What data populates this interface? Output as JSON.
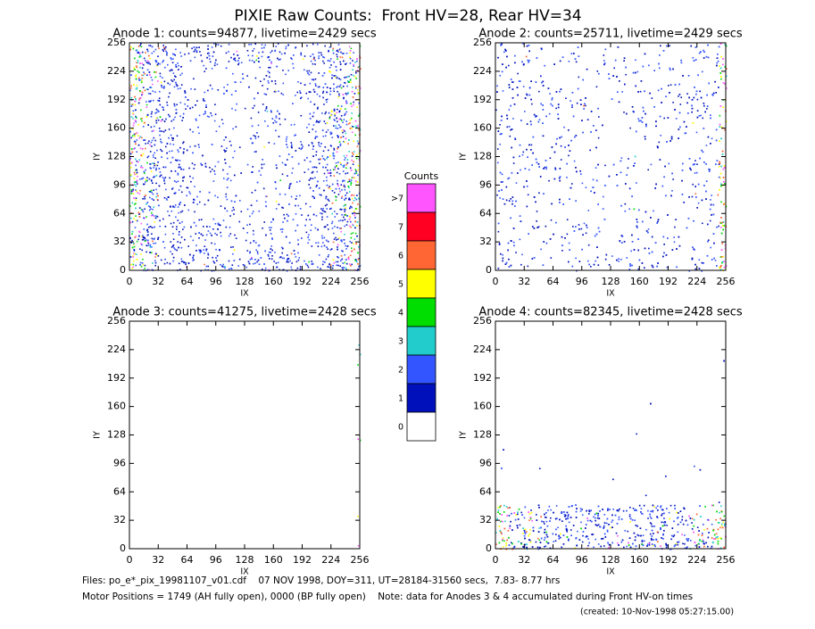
{
  "chart_data": [
    {
      "type": "heatmap",
      "title": "Anode 1: counts=94877, livetime=2429 secs",
      "xlabel": "IX",
      "ylabel": "IY",
      "xlim": [
        0,
        256
      ],
      "ylim": [
        0,
        256
      ],
      "xticks": [
        0,
        32,
        64,
        96,
        128,
        160,
        192,
        224,
        256
      ],
      "yticks": [
        0,
        32,
        64,
        96,
        128,
        160,
        192,
        224,
        256
      ]
    },
    {
      "type": "heatmap",
      "title": "Anode 2: counts=25711, livetime=2429 secs",
      "xlabel": "IX",
      "ylabel": "IY",
      "xlim": [
        0,
        256
      ],
      "ylim": [
        0,
        256
      ],
      "xticks": [
        0,
        32,
        64,
        96,
        128,
        160,
        192,
        224,
        256
      ],
      "yticks": [
        0,
        32,
        64,
        96,
        128,
        160,
        192,
        224,
        256
      ]
    },
    {
      "type": "heatmap",
      "title": "Anode 3: counts=41275, livetime=2428 secs",
      "xlabel": "IX",
      "ylabel": "IY",
      "xlim": [
        0,
        256
      ],
      "ylim": [
        0,
        256
      ],
      "xticks": [
        0,
        32,
        64,
        96,
        128,
        160,
        192,
        224,
        256
      ],
      "yticks": [
        0,
        32,
        64,
        96,
        128,
        160,
        192,
        224,
        256
      ]
    },
    {
      "type": "heatmap",
      "title": "Anode 4: counts=82345, livetime=2428 secs",
      "xlabel": "IX",
      "ylabel": "IY",
      "xlim": [
        0,
        256
      ],
      "ylim": [
        0,
        256
      ],
      "xticks": [
        0,
        32,
        64,
        96,
        128,
        160,
        192,
        224,
        256
      ],
      "yticks": [
        0,
        32,
        64,
        96,
        128,
        160,
        192,
        224,
        256
      ]
    }
  ],
  "header": {
    "title": "PIXIE Raw Counts:  Front HV=28, Rear HV=34"
  },
  "colorbar": {
    "title": "Counts",
    "labels": [
      ">7",
      "7",
      "6",
      "5",
      "4",
      "3",
      "2",
      "1",
      "0"
    ],
    "colors": [
      "#ff55ff",
      "#ff0022",
      "#ff6633",
      "#ffff00",
      "#00dd00",
      "#22cccc",
      "#3355ff",
      "#0011bb",
      "#ffffff"
    ]
  },
  "footer": {
    "files": "Files: po_e*_pix_19981107_v01.cdf    07 NOV 1998, DOY=311, UT=28184-31560 secs,  7.83- 8.77 hrs",
    "motor": "Motor Positions = 1749 (AH fully open), 0000 (BP fully open)    Note: data for Anodes 3 & 4 accumulated during Front HV-on times",
    "created": "(created: 10-Nov-1998 05:27:15.00)"
  }
}
